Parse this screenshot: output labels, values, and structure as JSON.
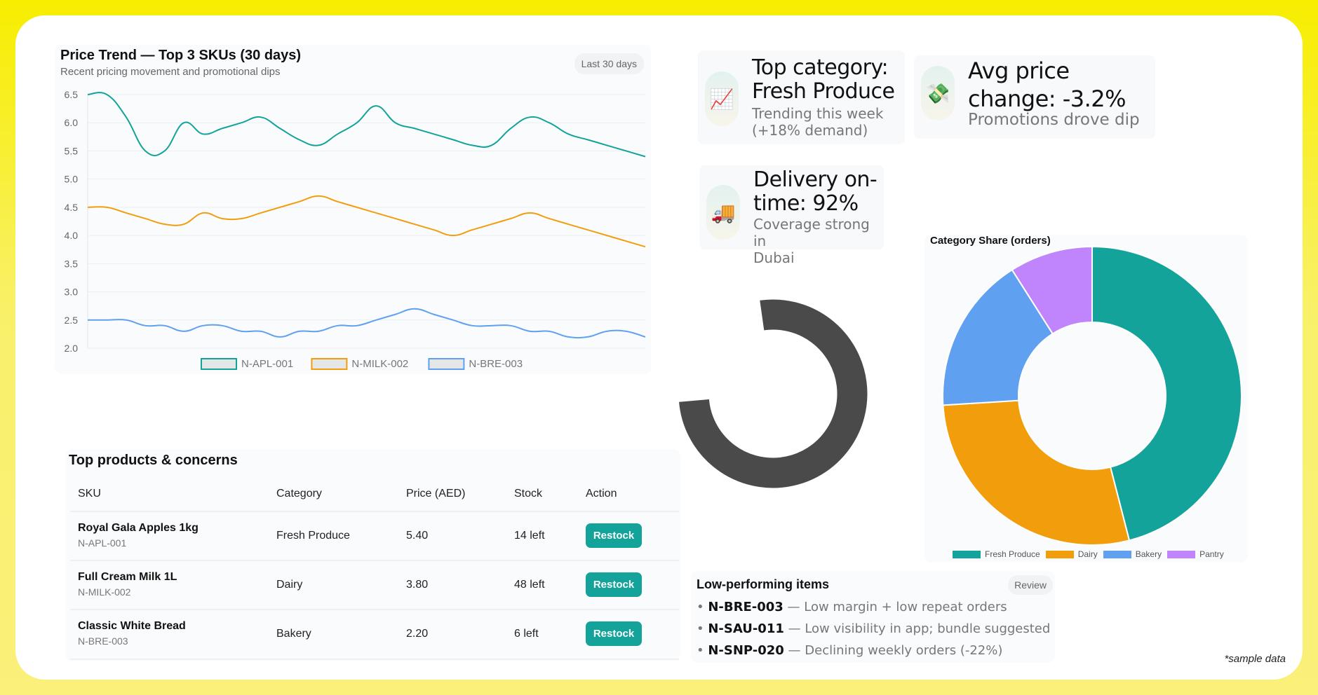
{
  "trend": {
    "title": "Price Trend — Top 3 SKUs (30 days)",
    "subtitle": "Recent pricing movement and promotional dips",
    "range_label": "Last 30 days"
  },
  "chart_data": [
    {
      "type": "line",
      "title": "Price Trend — Top 3 SKUs (30 days)",
      "ylim": [
        2.0,
        6.5
      ],
      "yticks": [
        "6.5",
        "6.0",
        "5.5",
        "5.0",
        "4.5",
        "4.0",
        "3.5",
        "3.0",
        "2.5",
        "2.0"
      ],
      "grid": true,
      "legend": "bottom",
      "series": [
        {
          "name": "N-APL-001",
          "color": "#13a39a",
          "values": [
            6.5,
            6.5,
            6.1,
            5.5,
            5.5,
            6.0,
            5.8,
            5.9,
            6.0,
            6.1,
            5.9,
            5.7,
            5.6,
            5.8,
            6.0,
            6.3,
            6.0,
            5.9,
            5.8,
            5.7,
            5.6,
            5.6,
            5.9,
            6.1,
            6.0,
            5.8,
            5.7,
            5.6,
            5.5,
            5.4
          ]
        },
        {
          "name": "N-MILK-002",
          "color": "#f29e0c",
          "values": [
            4.5,
            4.5,
            4.4,
            4.3,
            4.2,
            4.2,
            4.4,
            4.3,
            4.3,
            4.4,
            4.5,
            4.6,
            4.7,
            4.6,
            4.5,
            4.4,
            4.3,
            4.2,
            4.1,
            4.0,
            4.1,
            4.2,
            4.3,
            4.4,
            4.3,
            4.2,
            4.1,
            4.0,
            3.9,
            3.8
          ]
        },
        {
          "name": "N-BRE-003",
          "color": "#5fa1f0",
          "values": [
            2.5,
            2.5,
            2.5,
            2.4,
            2.4,
            2.3,
            2.4,
            2.4,
            2.3,
            2.3,
            2.2,
            2.3,
            2.3,
            2.4,
            2.4,
            2.5,
            2.6,
            2.7,
            2.6,
            2.5,
            2.4,
            2.4,
            2.4,
            2.3,
            2.3,
            2.2,
            2.2,
            2.3,
            2.3,
            2.2
          ]
        }
      ]
    },
    {
      "type": "pie",
      "title": "Category Share (orders)",
      "donut": true,
      "legend": "bottom",
      "categories": [
        "Fresh Produce",
        "Dairy",
        "Bakery",
        "Pantry"
      ],
      "values": [
        46,
        28,
        17,
        9
      ],
      "colors": [
        "#13a39a",
        "#f29e0c",
        "#5fa1f0",
        "#c084fc"
      ]
    }
  ],
  "stats": [
    {
      "icon": "chart-increasing-icon",
      "glyph": "📈",
      "title_lines": [
        "Top category:",
        "Fresh Produce"
      ],
      "desc_lines": [
        "Trending this week",
        "(+18% demand)"
      ]
    },
    {
      "icon": "money-icon",
      "glyph": "💸",
      "title_lines": [
        "Avg price",
        "change: -3.2%"
      ],
      "desc_lines": [
        "Promotions drove dip"
      ]
    },
    {
      "icon": "delivery-truck-icon",
      "glyph": "🚚",
      "title_lines": [
        "Delivery on-",
        "time: 92%"
      ],
      "desc_lines": [
        "Coverage strong in",
        "Dubai"
      ]
    }
  ],
  "table": {
    "title": "Top products & concerns",
    "headers": [
      "SKU",
      "Category",
      "Price (AED)",
      "Stock",
      "Action"
    ],
    "rows": [
      {
        "name": "Royal Gala Apples 1kg",
        "sku": "N-APL-001",
        "category": "Fresh Produce",
        "price": "5.40",
        "stock": "14 left",
        "action": "Restock"
      },
      {
        "name": "Full Cream Milk 1L",
        "sku": "N-MILK-002",
        "category": "Dairy",
        "price": "3.80",
        "stock": "48 left",
        "action": "Restock"
      },
      {
        "name": "Classic White Bread",
        "sku": "N-BRE-003",
        "category": "Bakery",
        "price": "2.20",
        "stock": "6 left",
        "action": "Restock"
      }
    ]
  },
  "low": {
    "title": "Low-performing items",
    "review_label": "Review",
    "items": [
      {
        "sku": "N-BRE-003",
        "note": " — Low margin + low repeat orders"
      },
      {
        "sku": "N-SAU-011",
        "note": " — Low visibility in app; bundle suggested"
      },
      {
        "sku": "N-SNP-020",
        "note": " — Declining weekly orders (-22%)"
      }
    ]
  },
  "footnote": "*sample data",
  "colors": {
    "accent": "#13a39a",
    "background": "#f7ee00",
    "spinner": "#4a4a4a"
  }
}
